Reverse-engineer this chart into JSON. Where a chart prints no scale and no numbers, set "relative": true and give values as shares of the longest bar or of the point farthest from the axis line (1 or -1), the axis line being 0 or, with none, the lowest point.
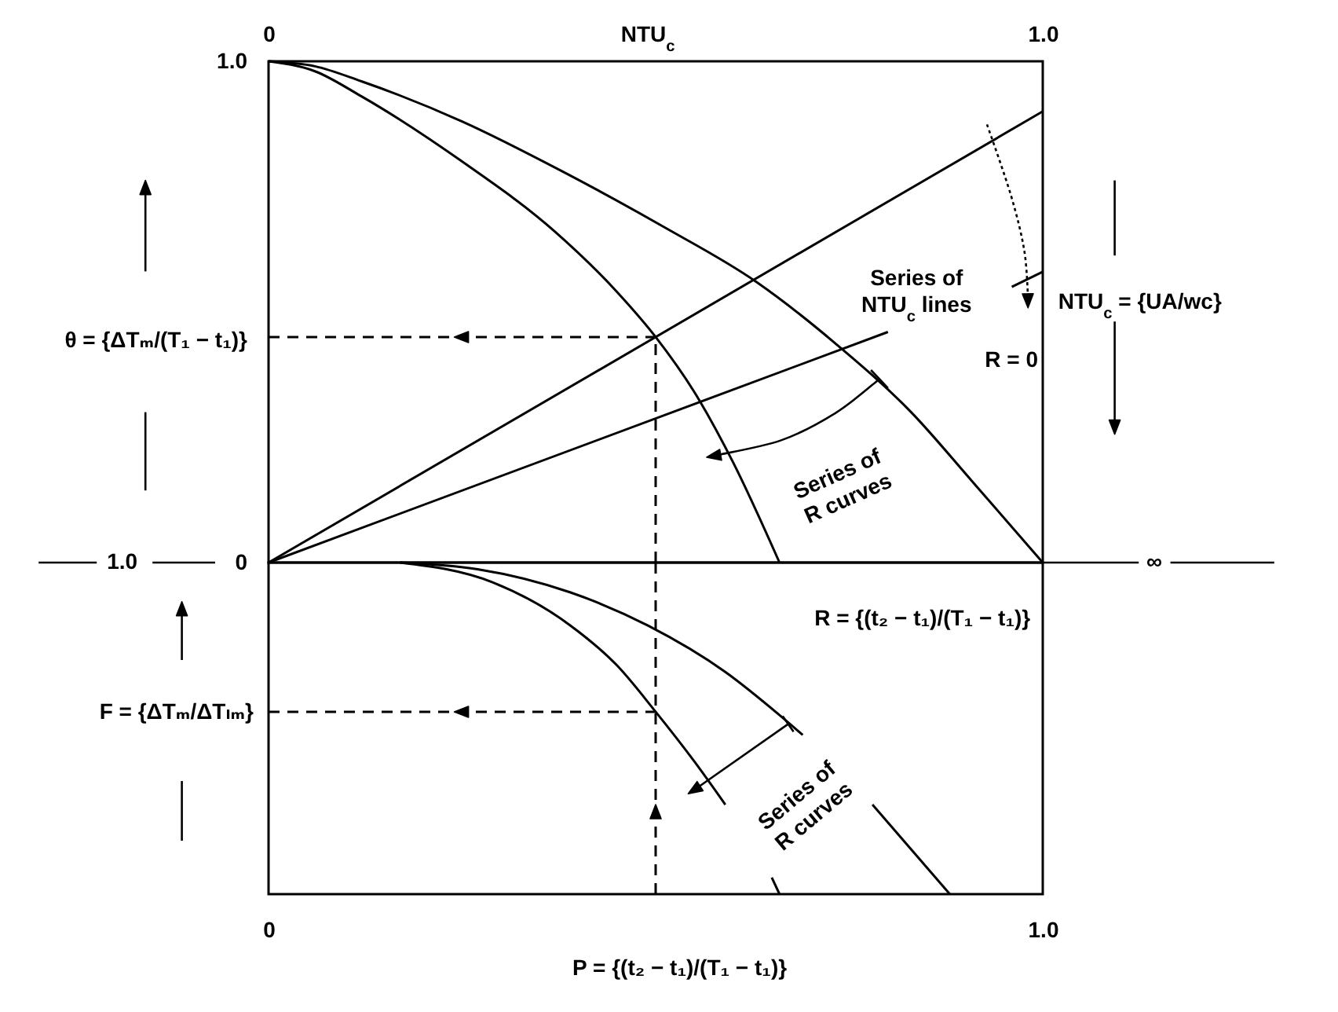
{
  "chart_data": [
    {
      "type": "line",
      "x2label": "NTU$_{c}$",
      "x2lim": [
        0,
        1
      ],
      "x2ticks": [
        0,
        {
          "value": 1,
          "label": "1.0"
        }
      ],
      "ylabel": "θ = {ΔTₘ/(T₁ − t₁)}",
      "xlim": [
        0,
        1
      ],
      "ylim": [
        0,
        1
      ],
      "yticks": [
        0,
        {
          "value": 1,
          "label": "1.0"
        }
      ],
      "tick_labels": "y",
      "series": [
        {
          "color": "#000000",
          "x": [
            0,
            1
          ],
          "values": [
            0,
            0.9
          ]
        },
        {
          "color": "#000000",
          "x": [
            0,
            0.8,
            0.88,
            0.96,
            1
          ],
          "values": [
            0,
            0.46,
            null,
            0.55,
            0.58
          ]
        },
        {
          "color": "#000000",
          "x": [
            0,
            0.06,
            0.12,
            0.25,
            0.37,
            0.45,
            0.5,
            0.55,
            0.6,
            0.66
          ],
          "values": [
            1,
            0.98,
            0.93,
            0.8,
            0.66,
            0.54,
            0.45,
            0.34,
            0.2,
            0
          ]
        },
        {
          "name": "R = 0",
          "color": "#000000",
          "x": [
            0,
            0.06,
            0.12,
            0.25,
            0.38,
            0.51,
            0.63,
            0.73,
            0.83,
            0.91,
            1
          ],
          "values": [
            1,
            0.99,
            0.96,
            0.88,
            0.78,
            0.67,
            0.56,
            0.44,
            0.3,
            0.16,
            0
          ]
        },
        {
          "color": "#000000",
          "line_style": "dashed",
          "x": [
            0,
            0.5
          ],
          "values": [
            0.45,
            0.45
          ]
        },
        {
          "color": "#000000",
          "line_style": "dashed",
          "x": [
            0.5,
            0.5
          ],
          "values": [
            0,
            0.45
          ]
        }
      ],
      "annotations": [
        "Series of NTU$_{c}$ lines",
        "Series of R curves",
        "NTU$_{c}$ = {UA/wc}",
        "∞"
      ]
    },
    {
      "type": "line",
      "relative": true,
      "xlabel": "P = {(t₂ − t₁)/(T₁ − t₁)}",
      "ylabel": "F = {ΔTₘ/ΔTₗₘ}",
      "xlim": [
        0,
        1
      ],
      "xticks": [
        0,
        {
          "value": 1,
          "label": "1.0"
        }
      ],
      "tick_labels": "x",
      "series": [
        {
          "color": "#000000",
          "x": [
            0.17,
            0.27,
            0.39,
            0.49,
            0.59,
            0.66,
            0.69,
            0.74,
            0.78,
            0.88
          ],
          "values": [
            1,
            0.98,
            0.91,
            0.81,
            0.67,
            0.54,
            0.48,
            null,
            0.27,
            0
          ]
        },
        {
          "color": "#000000",
          "x": [
            0.17,
            0.29,
            0.39,
            0.45,
            0.5,
            0.55,
            0.59,
            0.62,
            0.65,
            0.66
          ],
          "values": [
            1,
            0.94,
            0.81,
            0.69,
            0.55,
            0.4,
            0.27,
            null,
            0.05,
            0
          ]
        },
        {
          "color": "#000000",
          "line_style": "dashed",
          "x": [
            0,
            0.5
          ],
          "values": [
            0.55,
            0.55
          ]
        },
        {
          "color": "#000000",
          "line_style": "dashed",
          "x": [
            0.5,
            0.5
          ],
          "values": [
            0,
            1
          ]
        }
      ],
      "annotations": [
        "1.0",
        "R = {(t₂ − t₁)/(T₁ − t₁)}",
        "Series of R curves"
      ]
    }
  ]
}
